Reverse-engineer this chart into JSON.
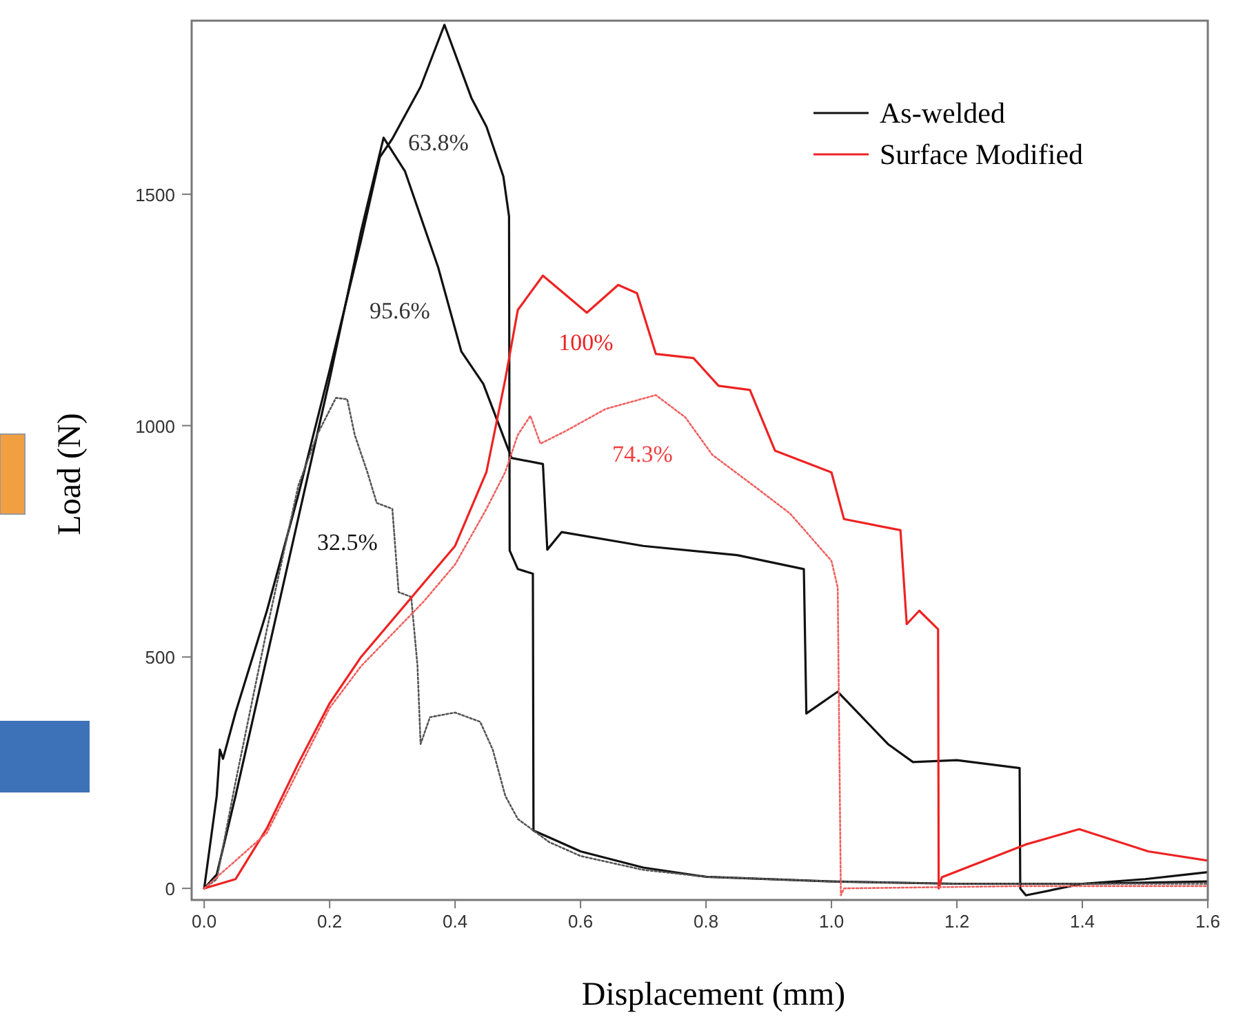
{
  "chart_data": {
    "type": "line",
    "xlabel": "Displacement (mm)",
    "ylabel": "Load (N)",
    "xlim": [
      -0.02,
      1.6
    ],
    "ylim": [
      -25,
      1875
    ],
    "xticks": [
      {
        "value": 0,
        "label": "0.0"
      },
      {
        "value": 0.2,
        "label": "0.2"
      },
      {
        "value": 0.4,
        "label": "0.4"
      },
      {
        "value": 0.6,
        "label": "0.6"
      },
      {
        "value": 0.8,
        "label": "0.8"
      },
      {
        "value": 1,
        "label": "1.0"
      },
      {
        "value": 1.2,
        "label": "1.2"
      },
      {
        "value": 1.4,
        "label": "1.4"
      },
      {
        "value": 1.6,
        "label": "1.6"
      }
    ],
    "yticks": [
      0,
      500,
      1000,
      1500
    ],
    "grid": false,
    "legend": "top right",
    "marker": "none",
    "series": [
      {
        "name": "As-welded",
        "color": "#111111",
        "line_style": "solid",
        "x": [
          0,
          0.02,
          0.025,
          0.03,
          0.05,
          0.1,
          0.15,
          0.2,
          0.25,
          0.28,
          0.3,
          0.345,
          0.383,
          0.426,
          0.45,
          0.477,
          0.486,
          0.487,
          0.5,
          0.524,
          0.525,
          0.55,
          0.6,
          0.7,
          0.8,
          1.0,
          1.2,
          1.4,
          1.6
        ],
        "values": [
          0,
          200,
          300,
          280,
          380,
          600,
          850,
          1120,
          1400,
          1580,
          1620,
          1732,
          1866,
          1708,
          1646,
          1538,
          1452,
          730,
          690,
          680,
          125,
          110,
          80,
          45,
          25,
          15,
          10,
          10,
          15
        ]
      },
      {
        "color": "#111111",
        "line_style": "solid",
        "x": [
          0,
          0.02,
          0.05,
          0.1,
          0.15,
          0.2,
          0.25,
          0.286,
          0.32,
          0.373,
          0.41,
          0.445,
          0.49,
          0.54,
          0.547,
          0.57,
          0.7,
          0.85,
          0.956,
          0.96,
          1.01,
          1.09,
          1.13,
          1.2,
          1.3,
          1.301,
          1.31,
          1.4,
          1.5,
          1.6
        ],
        "values": [
          0,
          30,
          200,
          500,
          800,
          1100,
          1420,
          1622,
          1550,
          1342,
          1160,
          1090,
          930,
          917,
          732,
          770,
          740,
          720,
          690,
          378,
          425,
          312,
          273,
          277,
          260,
          0,
          -15,
          10,
          20,
          35
        ]
      },
      {
        "color": "#555555",
        "line_style": "dotted",
        "x": [
          0,
          0.02,
          0.05,
          0.1,
          0.15,
          0.18,
          0.21,
          0.228,
          0.24,
          0.26,
          0.275,
          0.3,
          0.31,
          0.33,
          0.34,
          0.345,
          0.36,
          0.4,
          0.44,
          0.46,
          0.48,
          0.5,
          0.55,
          0.6,
          0.7,
          0.8,
          1.0,
          1.2,
          1.6
        ],
        "values": [
          0,
          20,
          230,
          560,
          870,
          980,
          1060,
          1057,
          980,
          900,
          833,
          820,
          640,
          630,
          482,
          312,
          370,
          380,
          360,
          300,
          200,
          150,
          100,
          70,
          40,
          25,
          15,
          10,
          10
        ]
      },
      {
        "name": "Surface Modified",
        "color": "#ee2222",
        "line_style": "solid",
        "x": [
          0,
          0.05,
          0.1,
          0.15,
          0.2,
          0.25,
          0.3,
          0.35,
          0.4,
          0.45,
          0.48,
          0.5,
          0.54,
          0.61,
          0.66,
          0.69,
          0.72,
          0.78,
          0.82,
          0.87,
          0.91,
          1.0,
          1.02,
          1.11,
          1.12,
          1.14,
          1.17,
          1.171,
          1.176,
          1.31,
          1.395,
          1.505,
          1.6
        ],
        "values": [
          0,
          20,
          130,
          270,
          400,
          500,
          580,
          660,
          740,
          900,
          1100,
          1250,
          1324,
          1244,
          1304,
          1286,
          1155,
          1146,
          1086,
          1077,
          946,
          899,
          798,
          774,
          571,
          600,
          560,
          0,
          24,
          95,
          128,
          80,
          60
        ]
      },
      {
        "color": "#f06060",
        "line_style": "dotted",
        "x": [
          0,
          0.1,
          0.2,
          0.25,
          0.3,
          0.35,
          0.4,
          0.45,
          0.48,
          0.5,
          0.52,
          0.536,
          0.576,
          0.64,
          0.72,
          0.767,
          0.81,
          0.877,
          0.934,
          1.0,
          1.01,
          1.015,
          1.02,
          1.3,
          1.6
        ],
        "values": [
          0,
          120,
          390,
          480,
          550,
          620,
          700,
          820,
          900,
          980,
          1021,
          961,
          988,
          1036,
          1066,
          1018,
          937,
          869,
          810,
          708,
          650,
          -15,
          0,
          5,
          5
        ]
      }
    ],
    "annotations": [
      "63.8%",
      "95.6%",
      "32.5%",
      "100%",
      "74.3%"
    ]
  }
}
